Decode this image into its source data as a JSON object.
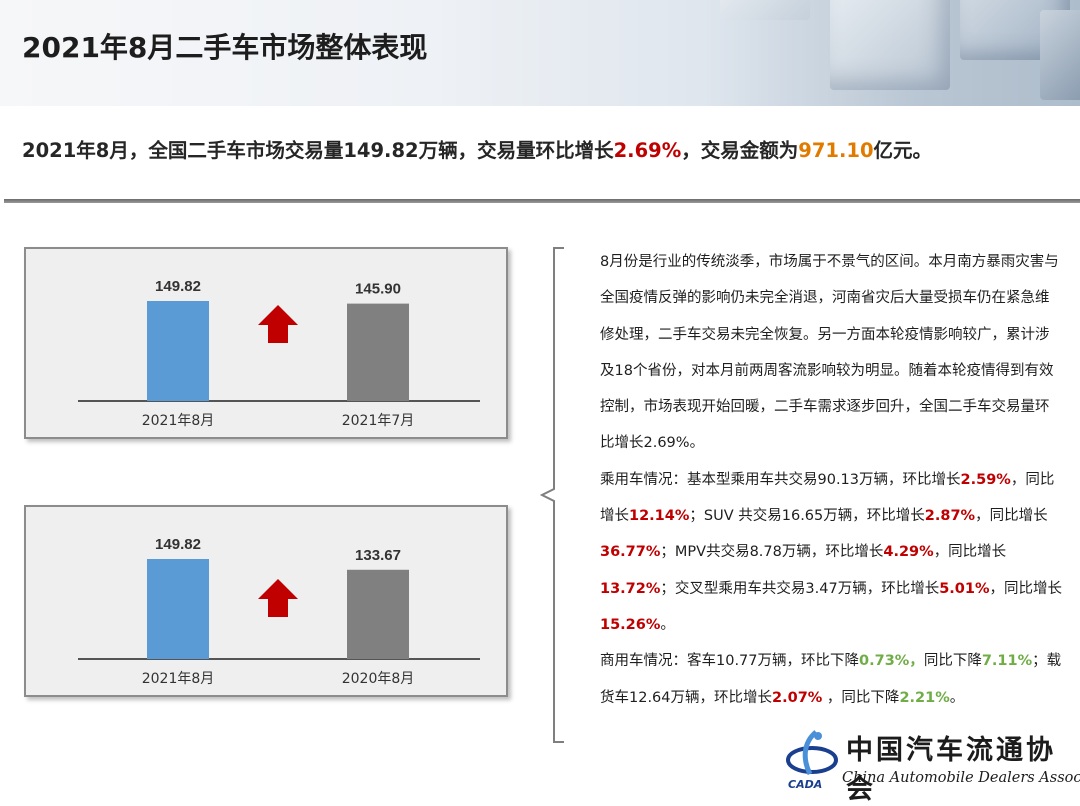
{
  "header": {
    "title": "2021年8月二手车市场整体表现"
  },
  "summary": {
    "prefix": "2021年8月，全国二手车市场交易量149.82万辆，交易量环比增长",
    "mom_growth": "2.69%",
    "middle": "，交易金额为",
    "amount": "971.10",
    "suffix": "亿元。"
  },
  "chart_data": [
    {
      "type": "bar",
      "categories": [
        "2021年8月",
        "2021年7月"
      ],
      "values": [
        149.82,
        145.9
      ],
      "value_labels": [
        "149.82",
        "145.90"
      ],
      "bar_colors": [
        "#5b9bd5",
        "#808080"
      ],
      "trend": "up",
      "legend": "none",
      "grid": false
    },
    {
      "type": "bar",
      "categories": [
        "2021年8月",
        "2020年8月"
      ],
      "values": [
        149.82,
        133.67
      ],
      "value_labels": [
        "149.82",
        "133.67"
      ],
      "bar_colors": [
        "#5b9bd5",
        "#808080"
      ],
      "trend": "up",
      "legend": "none",
      "grid": false
    }
  ],
  "analysis": {
    "para1": "8月份是行业的传统淡季，市场属于不景气的区间。本月南方暴雨灾害与全国疫情反弹的影响仍未完全消退，河南省灾后大量受损车仍在紧急维修处理，二手车交易未完全恢复。另一方面本轮疫情影响较广，累计涉及18个省份，对本月前两周客流影响较为明显。随着本轮疫情得到有效控制，市场表现开始回暖，二手车需求逐步回升，全国二手车交易量环比增长2.69%。",
    "para2": {
      "t1": "乘用车情况：基本型乘用车共交易90.13万辆，环比增长",
      "v1": "2.59%",
      "t2": "，同比增长",
      "v2": "12.14%",
      "t3": "；SUV 共交易16.65万辆，环比增长",
      "v3": "2.87%",
      "t4": "，同比增长",
      "v4": "36.77%",
      "t5": "；MPV共交易8.78万辆，环比增长",
      "v5": "4.29%",
      "t6": "，同比增长",
      "v6": "13.72%",
      "t7": "；交叉型乘用车共交易3.47万辆，环比增长",
      "v7": "5.01%",
      "t8": "，同比增长",
      "v8": "15.26%",
      "t9": "。"
    },
    "para3": {
      "t1": "商用车情况：客车10.77万辆，环比下降",
      "v1": "0.73%，",
      "t2": "同比下降",
      "v2": "7.11%",
      "t3": "；载货车12.64万辆，环比增长",
      "v3": "2.07%",
      "t4": " ，同比下降",
      "v4": "2.21%",
      "t5": "。"
    }
  },
  "logo": {
    "cn": "中国汽车流通协会",
    "en": "China Automobile Dealers Association",
    "abbr": "CADA"
  },
  "colors": {
    "increase_red": "#c00000",
    "amount_orange": "#e07b00",
    "decrease_green": "#70ad47",
    "bar_blue": "#5b9bd5",
    "bar_gray": "#808080",
    "arrow_red": "#c00000"
  }
}
